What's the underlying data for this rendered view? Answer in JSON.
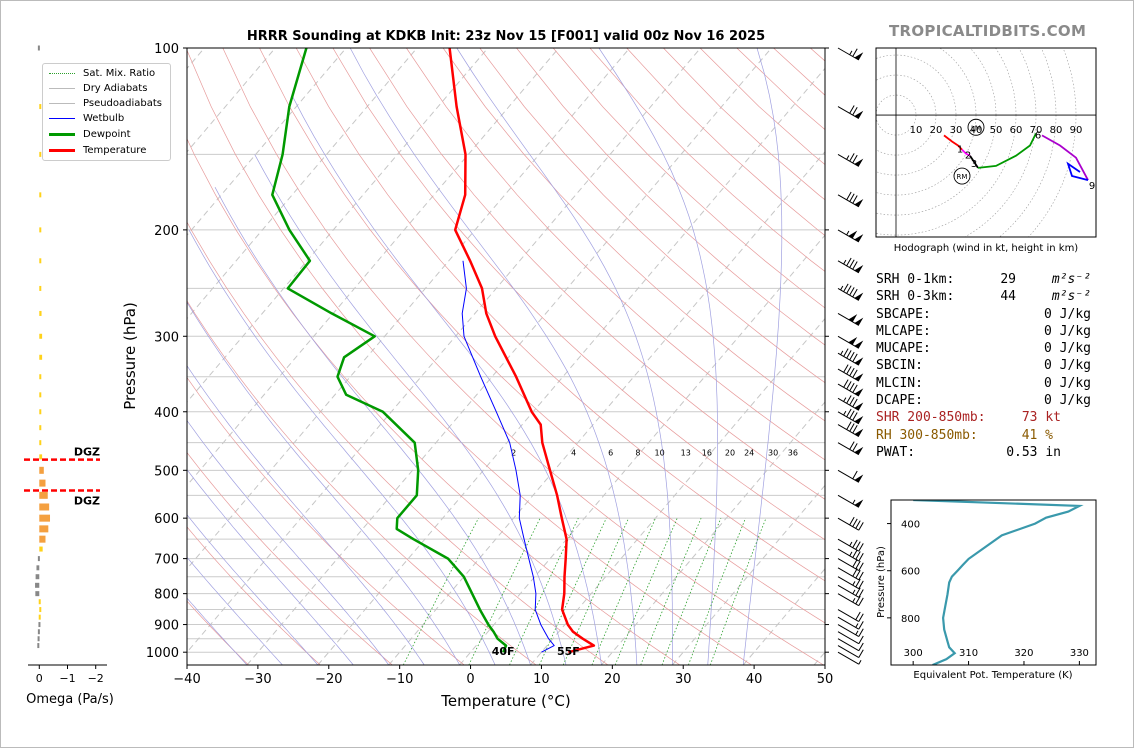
{
  "brand": "TROPICALTIDBITS.COM",
  "title": "HRRR Sounding at KDKB Init: 23z Nov 15 [F001] valid 00z Nov 16 2025",
  "colors": {
    "temperature": "#ff0000",
    "dewpoint": "#009900",
    "wetbulb": "#0000ff",
    "theta_e": "#3a99ac"
  },
  "legend": [
    {
      "label": "Sat. Mix. Ratio",
      "color": "#2ca02c",
      "style": "dotted"
    },
    {
      "label": "Dry Adiabats",
      "color": "#f08080",
      "style": "solid"
    },
    {
      "label": "Pseudoadiabats",
      "color": "#8080f0",
      "style": "solid"
    },
    {
      "label": "Wetbulb",
      "color": "#0000ff",
      "style": "solid"
    },
    {
      "label": "Dewpoint",
      "color": "#009900",
      "style": "solid"
    },
    {
      "label": "Temperature",
      "color": "#ff0000",
      "style": "solid"
    }
  ],
  "chart_data": [
    {
      "type": "line",
      "title": "HRRR Sounding at KDKB Init: 23z Nov 15 [F001] valid 00z Nov 16 2025",
      "xlabel": "Temperature (°C)",
      "ylabel": "Pressure (hPa)",
      "xlim": [
        -40,
        50
      ],
      "ylim": [
        1050,
        100
      ],
      "log_y": true,
      "skew": true,
      "grid": true,
      "legend_position": "upper-left",
      "x_ticks": [
        -40,
        -30,
        -20,
        -10,
        0,
        10,
        20,
        30,
        40,
        50
      ],
      "y_ticks": [
        100,
        200,
        300,
        400,
        500,
        600,
        700,
        800,
        900,
        1000
      ],
      "mixing_ratio_labels": [
        "2",
        "4",
        "6",
        "8",
        "10",
        "13",
        "16",
        "20",
        "24",
        "30",
        "36"
      ],
      "surface_labels": {
        "dewpoint": "40F",
        "temperature": "55F"
      },
      "dgz_label": "DGZ",
      "series": [
        {
          "name": "Temperature",
          "color": "#ff0000",
          "points": [
            [
              1000,
              13.8
            ],
            [
              975,
              16.6
            ],
            [
              950,
              14.2
            ],
            [
              925,
              12.0
            ],
            [
              900,
              10.4
            ],
            [
              850,
              7.8
            ],
            [
              800,
              6.2
            ],
            [
              750,
              4.2
            ],
            [
              700,
              2.2
            ],
            [
              650,
              0.0
            ],
            [
              600,
              -3.2
            ],
            [
              550,
              -6.6
            ],
            [
              500,
              -10.6
            ],
            [
              450,
              -15.0
            ],
            [
              420,
              -17.4
            ],
            [
              400,
              -20.2
            ],
            [
              350,
              -26.6
            ],
            [
              300,
              -34.4
            ],
            [
              275,
              -38.4
            ],
            [
              250,
              -42.0
            ],
            [
              225,
              -47.0
            ],
            [
              200,
              -52.8
            ],
            [
              175,
              -55.6
            ],
            [
              150,
              -60.4
            ],
            [
              125,
              -67.4
            ],
            [
              100,
              -75.4
            ]
          ]
        },
        {
          "name": "Dewpoint",
          "color": "#009900",
          "points": [
            [
              1000,
              4.6
            ],
            [
              975,
              4.2
            ],
            [
              950,
              2.2
            ],
            [
              925,
              0.8
            ],
            [
              900,
              -0.8
            ],
            [
              850,
              -3.8
            ],
            [
              800,
              -6.8
            ],
            [
              750,
              -10.0
            ],
            [
              700,
              -14.4
            ],
            [
              650,
              -21.6
            ],
            [
              625,
              -25.2
            ],
            [
              600,
              -26.4
            ],
            [
              550,
              -26.4
            ],
            [
              500,
              -29.2
            ],
            [
              450,
              -33.0
            ],
            [
              400,
              -41.2
            ],
            [
              375,
              -48.4
            ],
            [
              350,
              -51.8
            ],
            [
              325,
              -53.2
            ],
            [
              300,
              -51.4
            ],
            [
              275,
              -60.2
            ],
            [
              250,
              -69.4
            ],
            [
              225,
              -69.6
            ],
            [
              200,
              -76.2
            ],
            [
              175,
              -82.8
            ],
            [
              150,
              -86.2
            ],
            [
              125,
              -91.0
            ],
            [
              100,
              -95.6
            ]
          ]
        },
        {
          "name": "Wetbulb",
          "color": "#0000ff",
          "points": [
            [
              1000,
              10.0
            ],
            [
              975,
              11.0
            ],
            [
              950,
              9.4
            ],
            [
              925,
              8.0
            ],
            [
              900,
              6.6
            ],
            [
              850,
              4.0
            ],
            [
              800,
              2.2
            ],
            [
              750,
              -0.2
            ],
            [
              700,
              -3.0
            ],
            [
              650,
              -6.0
            ],
            [
              600,
              -9.2
            ],
            [
              550,
              -11.8
            ],
            [
              500,
              -15.4
            ],
            [
              450,
              -19.6
            ],
            [
              400,
              -25.2
            ],
            [
              350,
              -31.6
            ],
            [
              300,
              -38.8
            ],
            [
              275,
              -41.8
            ],
            [
              250,
              -44.2
            ],
            [
              225,
              -48.0
            ]
          ]
        }
      ],
      "wind_barbs_kt": [
        {
          "p": 1000,
          "spd": 8
        },
        {
          "p": 975,
          "spd": 10
        },
        {
          "p": 950,
          "spd": 12
        },
        {
          "p": 925,
          "spd": 12
        },
        {
          "p": 900,
          "spd": 15
        },
        {
          "p": 875,
          "spd": 18
        },
        {
          "p": 850,
          "spd": 20
        },
        {
          "p": 800,
          "spd": 25
        },
        {
          "p": 775,
          "spd": 25
        },
        {
          "p": 750,
          "spd": 25
        },
        {
          "p": 725,
          "spd": 30
        },
        {
          "p": 700,
          "spd": 30
        },
        {
          "p": 675,
          "spd": 35
        },
        {
          "p": 650,
          "spd": 35
        },
        {
          "p": 600,
          "spd": 40
        },
        {
          "p": 550,
          "spd": 55
        },
        {
          "p": 500,
          "spd": 60
        },
        {
          "p": 450,
          "spd": 70
        },
        {
          "p": 420,
          "spd": 80
        },
        {
          "p": 400,
          "spd": 85
        },
        {
          "p": 380,
          "spd": 85
        },
        {
          "p": 360,
          "spd": 90
        },
        {
          "p": 340,
          "spd": 90
        },
        {
          "p": 320,
          "spd": 95
        },
        {
          "p": 300,
          "spd": 100
        },
        {
          "p": 275,
          "spd": 100
        },
        {
          "p": 250,
          "spd": 95
        },
        {
          "p": 225,
          "spd": 85
        },
        {
          "p": 200,
          "spd": 105
        },
        {
          "p": 175,
          "spd": 80
        },
        {
          "p": 150,
          "spd": 75
        },
        {
          "p": 125,
          "spd": 70
        },
        {
          "p": 100,
          "spd": 65
        }
      ]
    },
    {
      "type": "bar",
      "orientation": "horizontal",
      "xlabel": "Omega (Pa/s)",
      "xlim": [
        0.4,
        -2.4
      ],
      "x_ticks": [
        0,
        -1,
        -2
      ],
      "ylim": [
        1050,
        100
      ],
      "dgz_bounds_hpa": [
        480,
        540
      ],
      "bars": [
        {
          "p": 100,
          "omega": 0.05
        },
        {
          "p": 125,
          "omega": -0.03
        },
        {
          "p": 150,
          "omega": -0.03
        },
        {
          "p": 175,
          "omega": -0.03
        },
        {
          "p": 200,
          "omega": -0.03
        },
        {
          "p": 225,
          "omega": -0.03
        },
        {
          "p": 250,
          "omega": -0.04
        },
        {
          "p": 275,
          "omega": -0.08
        },
        {
          "p": 300,
          "omega": -0.1
        },
        {
          "p": 325,
          "omega": -0.1
        },
        {
          "p": 350,
          "omega": -0.07
        },
        {
          "p": 375,
          "omega": -0.05
        },
        {
          "p": 400,
          "omega": -0.03
        },
        {
          "p": 425,
          "omega": -0.04
        },
        {
          "p": 450,
          "omega": -0.06
        },
        {
          "p": 475,
          "omega": -0.1
        },
        {
          "p": 500,
          "omega": -0.16
        },
        {
          "p": 525,
          "omega": -0.22
        },
        {
          "p": 550,
          "omega": -0.3
        },
        {
          "p": 575,
          "omega": -0.35
        },
        {
          "p": 600,
          "omega": -0.38
        },
        {
          "p": 625,
          "omega": -0.32
        },
        {
          "p": 650,
          "omega": -0.22
        },
        {
          "p": 675,
          "omega": -0.12
        },
        {
          "p": 700,
          "omega": 0.05
        },
        {
          "p": 725,
          "omega": 0.1
        },
        {
          "p": 750,
          "omega": 0.13
        },
        {
          "p": 775,
          "omega": 0.15
        },
        {
          "p": 800,
          "omega": 0.14
        },
        {
          "p": 825,
          "omega": 0.02
        },
        {
          "p": 850,
          "omega": -0.02
        },
        {
          "p": 875,
          "omega": 0.02
        },
        {
          "p": 900,
          "omega": 0.03
        },
        {
          "p": 925,
          "omega": 0.05
        },
        {
          "p": 950,
          "omega": 0.06
        },
        {
          "p": 975,
          "omega": 0.07
        }
      ]
    },
    {
      "type": "line",
      "title": "Hodograph (wind in kt, height in km)",
      "xlim": [
        -10,
        100
      ],
      "ylim": [
        -60,
        33
      ],
      "ring_labels": [
        "10",
        "20",
        "30",
        "40",
        "50",
        "60",
        "70",
        "80",
        "90"
      ],
      "markers": [
        {
          "label": "LM",
          "u": 40,
          "v": -6
        },
        {
          "label": "RM",
          "u": 33,
          "v": -30
        }
      ],
      "height_labels": [
        {
          "km": "1",
          "u": 32,
          "v": -17
        },
        {
          "km": "2",
          "u": 36,
          "v": -20
        },
        {
          "km": "3",
          "u": 39,
          "v": -24
        },
        {
          "km": "6",
          "u": 71,
          "v": -10
        },
        {
          "km": "9",
          "u": 98,
          "v": -35
        }
      ],
      "segments": [
        {
          "color": "#ff0000",
          "points": [
            [
              24,
              -10
            ],
            [
              28,
              -13
            ],
            [
              31,
              -15
            ],
            [
              33,
              -17
            ]
          ]
        },
        {
          "color": "#ff00ff",
          "points": [
            [
              33,
              -17
            ],
            [
              35,
              -19
            ],
            [
              37,
              -20
            ]
          ]
        },
        {
          "color": "#000000",
          "points": [
            [
              37,
              -20
            ],
            [
              39,
              -23
            ],
            [
              41,
              -26
            ]
          ]
        },
        {
          "color": "#009900",
          "points": [
            [
              41,
              -26
            ],
            [
              50,
              -25
            ],
            [
              60,
              -20
            ],
            [
              67,
              -15
            ],
            [
              70,
              -9
            ]
          ]
        },
        {
          "color": "#aa00cc",
          "points": [
            [
              73,
              -10
            ],
            [
              82,
              -15
            ],
            [
              90,
              -21
            ],
            [
              96,
              -32
            ]
          ]
        },
        {
          "color": "#0000ff",
          "points": [
            [
              96,
              -32
            ],
            [
              88,
              -30
            ],
            [
              86,
              -24
            ],
            [
              92,
              -28
            ]
          ]
        }
      ]
    },
    {
      "type": "line",
      "xlabel": "Equivalent Pot. Temperature (K)",
      "ylabel": "Pressure (hPa)",
      "xlim": [
        296,
        333
      ],
      "ylim": [
        1000,
        300
      ],
      "x_ticks": [
        300,
        310,
        320,
        330
      ],
      "y_ticks": [
        400,
        600,
        800
      ],
      "series": [
        {
          "name": "",
          "color": "#3a99ac",
          "points": [
            [
              300,
              300
            ],
            [
              325,
              330
            ],
            [
              349,
              328
            ],
            [
              375,
              324
            ],
            [
              400,
              322
            ],
            [
              450,
              316
            ],
            [
              500,
              313
            ],
            [
              550,
              310
            ],
            [
              575,
              309
            ],
            [
              600,
              308
            ],
            [
              625,
              307
            ],
            [
              650,
              306.5
            ],
            [
              700,
              306.2
            ],
            [
              750,
              305.8
            ],
            [
              800,
              305.4
            ],
            [
              850,
              305.6
            ],
            [
              900,
              306.2
            ],
            [
              925,
              306.5
            ],
            [
              950,
              307.5
            ],
            [
              975,
              306
            ],
            [
              1000,
              303.5
            ]
          ]
        }
      ]
    }
  ],
  "stats": [
    {
      "label": "SRH 0-1km:",
      "value": "29",
      "unit": "m²s⁻²",
      "color": "#000000"
    },
    {
      "label": "SRH 0-3km:",
      "value": "44",
      "unit": "m²s⁻²",
      "color": "#000000"
    },
    {
      "label": "SBCAPE:",
      "value": "0 J/kg",
      "unit": "",
      "color": "#000000"
    },
    {
      "label": "MLCAPE:",
      "value": "0 J/kg",
      "unit": "",
      "color": "#000000"
    },
    {
      "label": "MUCAPE:",
      "value": "0 J/kg",
      "unit": "",
      "color": "#000000"
    },
    {
      "label": "SBCIN:",
      "value": "0 J/kg",
      "unit": "",
      "color": "#000000"
    },
    {
      "label": "MLCIN:",
      "value": "0 J/kg",
      "unit": "",
      "color": "#000000"
    },
    {
      "label": "DCAPE:",
      "value": "0 J/kg",
      "unit": "",
      "color": "#000000"
    },
    {
      "label": "SHR 200-850mb:",
      "value": "73 kt",
      "unit": "",
      "color": "#aa2222"
    },
    {
      "label": "RH 300-850mb:",
      "value": "41 %",
      "unit": "",
      "color": "#8a5a00"
    },
    {
      "label": "PWAT:",
      "value": "0.53 in",
      "unit": "",
      "color": "#000000"
    }
  ]
}
